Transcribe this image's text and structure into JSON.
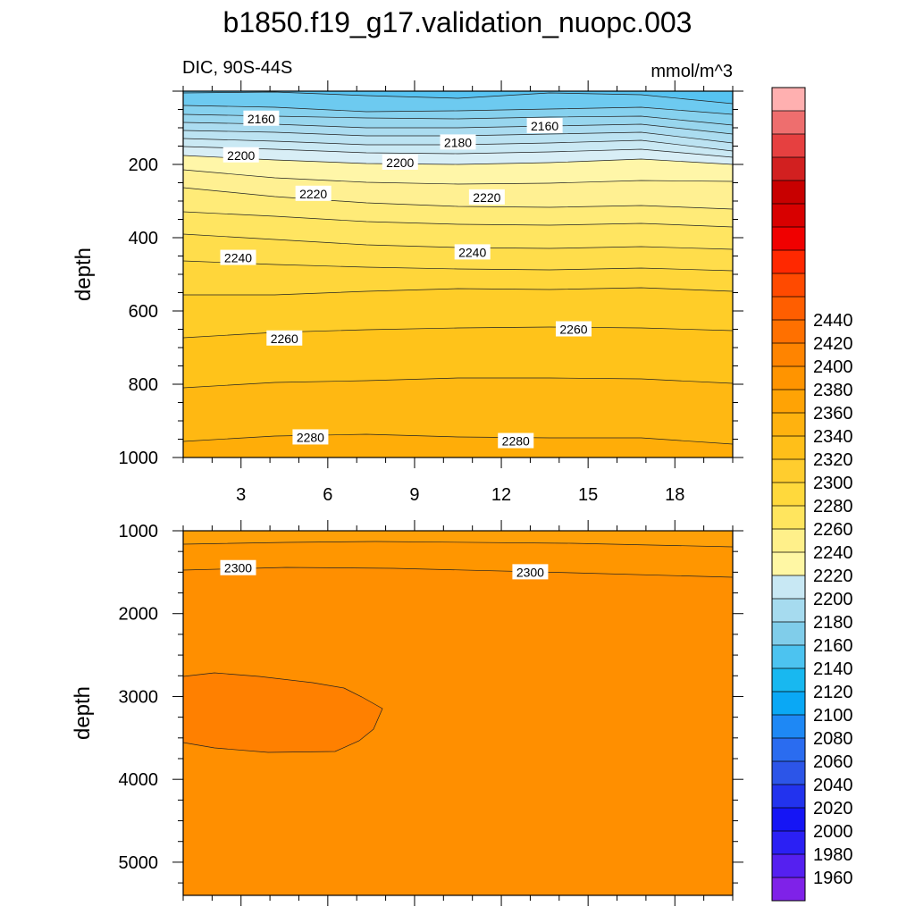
{
  "title": "b1850.f19_g17.validation_nuopc.003",
  "subtitle_left": "DIC, 90S-44S",
  "subtitle_right": "mmol/m^3",
  "colors": {
    "levels": [
      1960,
      1980,
      2000,
      2020,
      2040,
      2060,
      2080,
      2100,
      2120,
      2140,
      2160,
      2180,
      2200,
      2220,
      2240,
      2260,
      2280,
      2300,
      2320,
      2340,
      2360,
      2380,
      2400,
      2420,
      2440
    ],
    "fills": [
      "#7f22e8",
      "#5520f0",
      "#2b20f4",
      "#1515f5",
      "#2233ee",
      "#2c55e8",
      "#2a6cf0",
      "#1e88f5",
      "#0aa8f5",
      "#18b8f0",
      "#4cc3f0",
      "#80cdea",
      "#a6dbef",
      "#c8e8f4",
      "#fff7a4",
      "#fff08a",
      "#ffe55e",
      "#ffd93c",
      "#ffcd2e",
      "#ffbf19",
      "#ffb20f",
      "#ffa305",
      "#ff9400",
      "#ff8400",
      "#ff7000",
      "#ff5e00",
      "#ff4a00",
      "#ff2800",
      "#f00000",
      "#d80000",
      "#c80000",
      "#d22020",
      "#e64040",
      "#ee6e6e",
      "#ffb0b0"
    ]
  },
  "chart_data": [
    {
      "type": "heatmap",
      "panel": "upper",
      "ylabel": "depth",
      "xlim": [
        1,
        20
      ],
      "ylim": [
        1000,
        0
      ],
      "xticks": [
        3,
        6,
        9,
        12,
        15,
        18
      ],
      "yticks": [
        200,
        400,
        600,
        800,
        1000
      ],
      "contour_labels": [
        {
          "text": "2160",
          "x": 3.7,
          "y": 75
        },
        {
          "text": "2160",
          "x": 13.5,
          "y": 95
        },
        {
          "text": "2180",
          "x": 10.5,
          "y": 140
        },
        {
          "text": "2200",
          "x": 3.0,
          "y": 175
        },
        {
          "text": "2200",
          "x": 8.5,
          "y": 195
        },
        {
          "text": "2220",
          "x": 5.5,
          "y": 280
        },
        {
          "text": "2220",
          "x": 11.5,
          "y": 290
        },
        {
          "text": "2240",
          "x": 2.9,
          "y": 455
        },
        {
          "text": "2240",
          "x": 11.0,
          "y": 440
        },
        {
          "text": "2260",
          "x": 4.5,
          "y": 675
        },
        {
          "text": "2260",
          "x": 14.5,
          "y": 650
        },
        {
          "text": "2280",
          "x": 5.4,
          "y": 945
        },
        {
          "text": "2280",
          "x": 12.5,
          "y": 955
        }
      ]
    },
    {
      "type": "heatmap",
      "panel": "lower",
      "ylabel": "depth",
      "xlim": [
        1,
        20
      ],
      "ylim": [
        5400,
        1000
      ],
      "yticks": [
        1000,
        2000,
        3000,
        4000,
        5000
      ],
      "contour_labels": [
        {
          "text": "2300",
          "x": 2.9,
          "y": 1450
        },
        {
          "text": "2300",
          "x": 13.0,
          "y": 1500
        }
      ]
    }
  ],
  "colorbar": {
    "labels": [
      "2440",
      "2420",
      "2400",
      "2380",
      "2360",
      "2340",
      "2320",
      "2300",
      "2280",
      "2260",
      "2240",
      "2220",
      "2200",
      "2180",
      "2160",
      "2140",
      "2120",
      "2100",
      "2080",
      "2060",
      "2040",
      "2020",
      "2000",
      "1980",
      "1960"
    ]
  }
}
